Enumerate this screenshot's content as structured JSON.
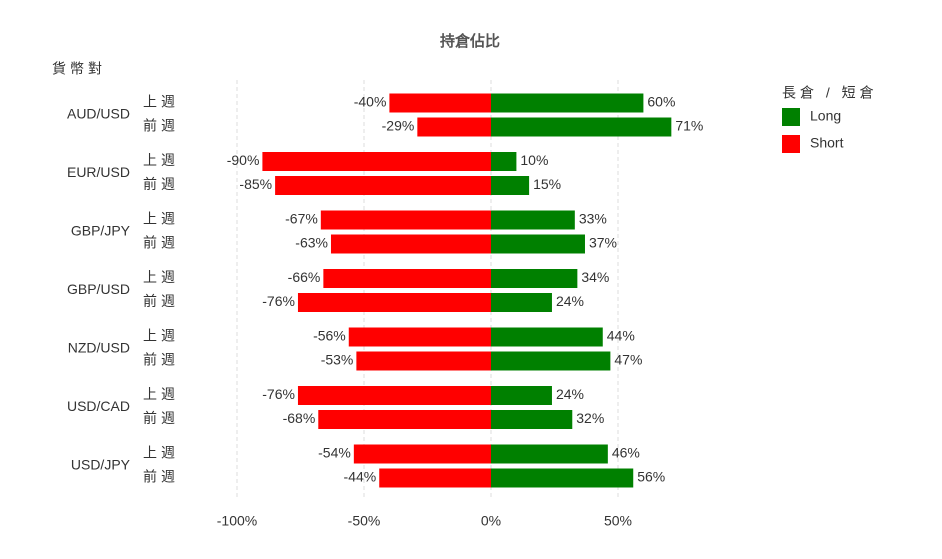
{
  "chart_data": {
    "type": "diverging-bar",
    "title": "持倉佔比",
    "y_axis_title": "貨幣對",
    "categories": [
      "AUD/USD",
      "EUR/USD",
      "GBP/JPY",
      "GBP/USD",
      "NZD/USD",
      "USD/CAD",
      "USD/JPY"
    ],
    "subcategories": [
      "上週",
      "前週"
    ],
    "legend_title": "長倉 / 短倉",
    "series": [
      {
        "name": "Long",
        "color": "#008000",
        "values": [
          [
            60,
            71
          ],
          [
            10,
            15
          ],
          [
            33,
            37
          ],
          [
            34,
            24
          ],
          [
            44,
            47
          ],
          [
            24,
            32
          ],
          [
            46,
            56
          ]
        ],
        "value_labels": [
          [
            "60%",
            "71%"
          ],
          [
            "10%",
            "15%"
          ],
          [
            "33%",
            "37%"
          ],
          [
            "34%",
            "24%"
          ],
          [
            "44%",
            "47%"
          ],
          [
            "24%",
            "32%"
          ],
          [
            "46%",
            "56%"
          ]
        ]
      },
      {
        "name": "Short",
        "color": "#ff0000",
        "values": [
          [
            -40,
            -29
          ],
          [
            -90,
            -85
          ],
          [
            -67,
            -63
          ],
          [
            -66,
            -76
          ],
          [
            -56,
            -53
          ],
          [
            -76,
            -68
          ],
          [
            -54,
            -44
          ]
        ],
        "value_labels": [
          [
            "-40%",
            "-29%"
          ],
          [
            "-90%",
            "-85%"
          ],
          [
            "-67%",
            "-63%"
          ],
          [
            "-66%",
            "-76%"
          ],
          [
            "-56%",
            "-53%"
          ],
          [
            "-76%",
            "-68%"
          ],
          [
            "-54%",
            "-44%"
          ]
        ]
      }
    ],
    "xlim": [
      -100,
      100
    ],
    "xticks": [
      {
        "value": -100,
        "label": "-100%"
      },
      {
        "value": -50,
        "label": "-50%"
      },
      {
        "value": 0,
        "label": "0%"
      },
      {
        "value": 50,
        "label": "50%"
      }
    ],
    "grid": true,
    "legend": "right"
  }
}
